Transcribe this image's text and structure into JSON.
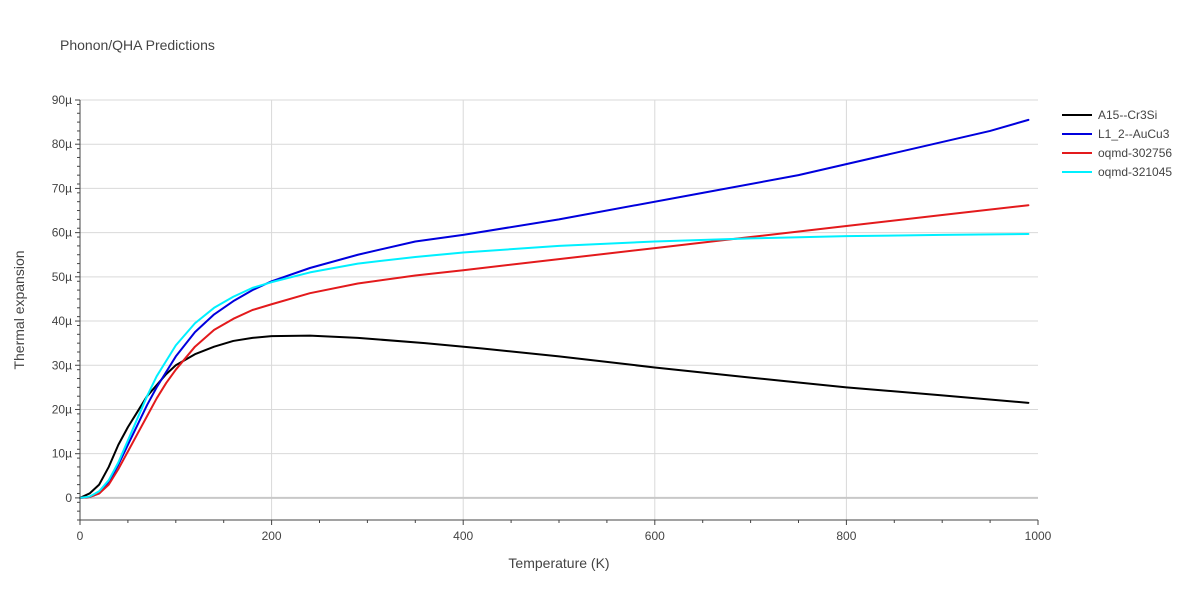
{
  "chart_data": {
    "type": "line",
    "title": "Phonon/QHA Predictions",
    "xlabel": "Temperature (K)",
    "ylabel": "Thermal expansion",
    "xlim": [
      0,
      1000
    ],
    "ylim": [
      -5e-06,
      9e-05
    ],
    "x_ticks": [
      0,
      200,
      400,
      600,
      800,
      1000
    ],
    "x_tick_labels": [
      "0",
      "200",
      "400",
      "600",
      "800",
      "1000"
    ],
    "y_ticks": [
      0,
      1e-05,
      2e-05,
      3e-05,
      4e-05,
      5e-05,
      6e-05,
      7e-05,
      8e-05,
      9e-05
    ],
    "y_tick_labels": [
      "0",
      "10µ",
      "20µ",
      "30µ",
      "40µ",
      "50µ",
      "60µ",
      "70µ",
      "80µ",
      "90µ"
    ],
    "grid": true,
    "legend_position": "top-right",
    "series": [
      {
        "name": "A15--Cr3Si",
        "color": "#000000",
        "x": [
          0,
          10,
          20,
          30,
          40,
          50,
          60,
          70,
          80,
          90,
          100,
          120,
          140,
          160,
          180,
          200,
          240,
          290,
          360,
          420,
          500,
          600,
          700,
          800,
          900,
          990
        ],
        "y": [
          0,
          1e-06,
          3e-06,
          7e-06,
          1.2e-05,
          1.6e-05,
          1.95e-05,
          2.3e-05,
          2.55e-05,
          2.8e-05,
          3e-05,
          3.25e-05,
          3.42e-05,
          3.55e-05,
          3.62e-05,
          3.66e-05,
          3.67e-05,
          3.62e-05,
          3.5e-05,
          3.38e-05,
          3.2e-05,
          2.95e-05,
          2.72e-05,
          2.5e-05,
          2.32e-05,
          2.15e-05
        ]
      },
      {
        "name": "L1_2--AuCu3",
        "color": "#0000dd",
        "x": [
          0,
          10,
          20,
          30,
          40,
          50,
          60,
          70,
          80,
          90,
          100,
          120,
          140,
          160,
          180,
          200,
          240,
          290,
          350,
          400,
          500,
          650,
          750,
          850,
          950,
          990
        ],
        "y": [
          0,
          2e-07,
          1e-06,
          3.5e-06,
          7.5e-06,
          1.2e-05,
          1.65e-05,
          2.1e-05,
          2.5e-05,
          2.85e-05,
          3.2e-05,
          3.75e-05,
          4.15e-05,
          4.45e-05,
          4.7e-05,
          4.9e-05,
          5.2e-05,
          5.5e-05,
          5.8e-05,
          5.95e-05,
          6.3e-05,
          6.9e-05,
          7.3e-05,
          7.8e-05,
          8.3e-05,
          8.55e-05
        ]
      },
      {
        "name": "oqmd-302756",
        "color": "#e31a1c",
        "x": [
          0,
          10,
          20,
          30,
          40,
          50,
          60,
          70,
          80,
          90,
          100,
          120,
          140,
          160,
          180,
          200,
          240,
          290,
          350,
          400,
          500,
          600,
          700,
          800,
          900,
          990
        ],
        "y": [
          0,
          2e-07,
          1e-06,
          3e-06,
          6.5e-06,
          1.05e-05,
          1.45e-05,
          1.85e-05,
          2.25e-05,
          2.6e-05,
          2.9e-05,
          3.42e-05,
          3.8e-05,
          4.05e-05,
          4.25e-05,
          4.38e-05,
          4.63e-05,
          4.85e-05,
          5.03e-05,
          5.15e-05,
          5.4e-05,
          5.65e-05,
          5.9e-05,
          6.15e-05,
          6.4e-05,
          6.62e-05
        ]
      },
      {
        "name": "oqmd-321045",
        "color": "#00f0ff",
        "x": [
          0,
          10,
          20,
          30,
          40,
          50,
          60,
          70,
          80,
          90,
          100,
          120,
          140,
          160,
          180,
          200,
          240,
          290,
          350,
          400,
          500,
          600,
          700,
          800,
          900,
          990
        ],
        "y": [
          0,
          3e-07,
          1.5e-06,
          4e-06,
          8e-06,
          1.3e-05,
          1.8e-05,
          2.3e-05,
          2.75e-05,
          3.1e-05,
          3.45e-05,
          3.95e-05,
          4.3e-05,
          4.55e-05,
          4.75e-05,
          4.88e-05,
          5.1e-05,
          5.3e-05,
          5.45e-05,
          5.55e-05,
          5.7e-05,
          5.8e-05,
          5.87e-05,
          5.92e-05,
          5.95e-05,
          5.97e-05
        ]
      }
    ]
  }
}
